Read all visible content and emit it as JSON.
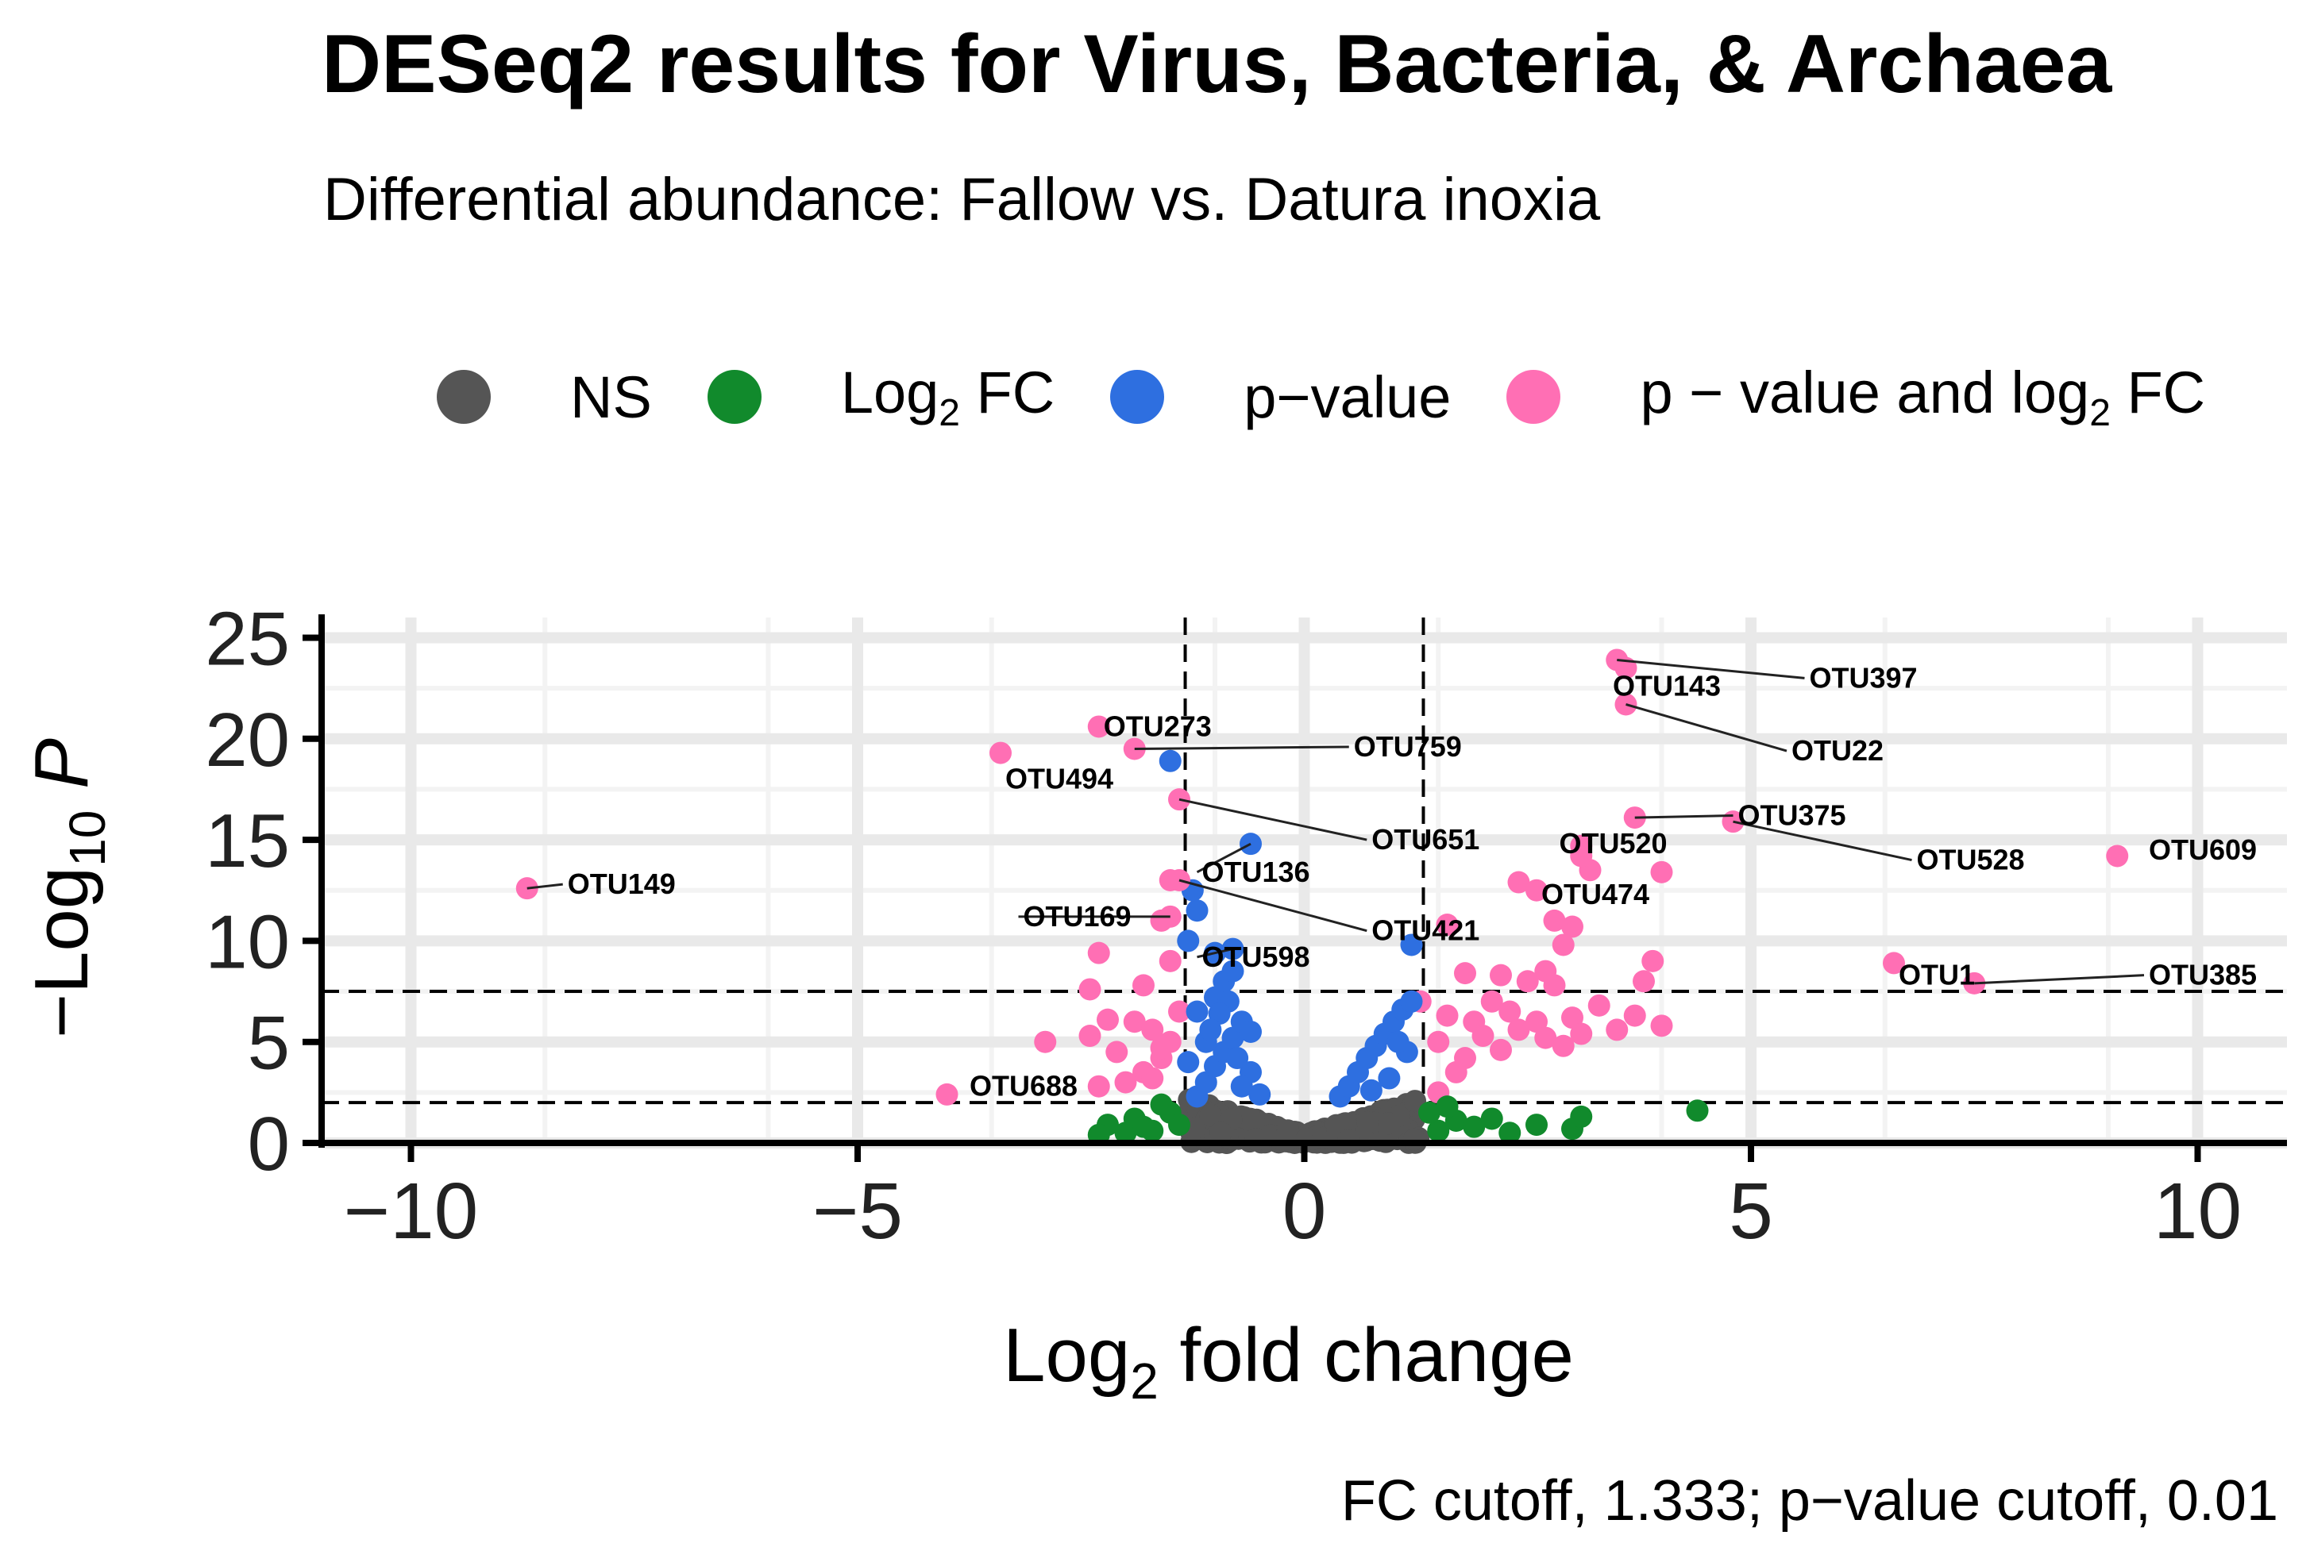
{
  "title": "DESeq2 results for Virus, Bacteria, & Archaea",
  "subtitle": "Differential abundance: Fallow vs. Datura inoxia",
  "caption": "FC cutoff, 1.333; p−value cutoff, 0.01",
  "legend": {
    "items": [
      {
        "key": "NS",
        "label": "NS",
        "color": "#555555"
      },
      {
        "key": "FC",
        "label_main": "Log",
        "label_sub": "2",
        "label_after": " FC",
        "color": "#118a2c"
      },
      {
        "key": "P",
        "label": "p−value",
        "color": "#2e6fe0"
      },
      {
        "key": "PFC",
        "label_main": "p − value and log",
        "label_sub": "2",
        "label_after": " FC",
        "color": "#ff6fb4"
      }
    ]
  },
  "colors": {
    "ns": "#555555",
    "fc": "#118a2c",
    "p": "#2e6fe0",
    "pfc": "#ff6fb4",
    "panel": "#ffffff",
    "grid_major": "#e9e9e9",
    "grid_minor": "#f3f3f3"
  },
  "chart_data": {
    "type": "scatter",
    "title": "DESeq2 results for Virus, Bacteria, & Archaea",
    "subtitle": "Differential abundance: Fallow vs. Datura inoxia",
    "xlabel_main": "Log",
    "xlabel_sub": "2",
    "xlabel_after": " fold change",
    "ylabel_main": "−Log",
    "ylabel_sub": "10",
    "ylabel_after": " P",
    "xlim": [
      -11,
      11
    ],
    "ylim": [
      0,
      26
    ],
    "x_ticks": [
      -10,
      -5,
      0,
      5,
      10
    ],
    "x_tick_labels": [
      "−10",
      "−5",
      "0",
      "5",
      "10"
    ],
    "y_ticks": [
      0,
      5,
      10,
      15,
      20,
      25
    ],
    "y_tick_labels": [
      "0",
      "5",
      "10",
      "15",
      "20",
      "25"
    ],
    "fc_cutoff": 1.333,
    "p_cutoff_neglog10": 2,
    "extra_hline": 7.5,
    "labeled_points": [
      {
        "label": "OTU149",
        "x": -8.7,
        "y": 12.6,
        "cat": "pfc",
        "lx": -8.3,
        "ly": 12.8
      },
      {
        "label": "OTU273",
        "x": -2.3,
        "y": 20.6,
        "cat": "pfc",
        "lx": -2.3,
        "ly": 20.6
      },
      {
        "label": "OTU759",
        "x": -1.9,
        "y": 19.5,
        "cat": "pfc",
        "lx": 0.5,
        "ly": 19.6
      },
      {
        "label": "OTU494",
        "x": -3.4,
        "y": 19.3,
        "cat": "pfc",
        "lx": -3.4,
        "ly": 18.0
      },
      {
        "label": "OTU651",
        "x": -1.4,
        "y": 17.0,
        "cat": "pfc",
        "lx": 0.7,
        "ly": 15.0
      },
      {
        "label": "OTU136",
        "x": -0.6,
        "y": 14.8,
        "cat": "p",
        "lx": -1.2,
        "ly": 13.4
      },
      {
        "label": "OTU421",
        "x": -1.4,
        "y": 13.0,
        "cat": "pfc",
        "lx": 0.7,
        "ly": 10.5
      },
      {
        "label": "OTU169",
        "x": -1.5,
        "y": 11.2,
        "cat": "pfc",
        "lx": -3.2,
        "ly": 11.2
      },
      {
        "label": "OTU598",
        "x": -0.8,
        "y": 9.6,
        "cat": "p",
        "lx": -1.2,
        "ly": 9.2
      },
      {
        "label": "OTU688",
        "x": -4.0,
        "y": 2.4,
        "cat": "pfc",
        "lx": -3.8,
        "ly": 2.8
      },
      {
        "label": "OTU397",
        "x": 3.5,
        "y": 23.9,
        "cat": "pfc",
        "lx": 5.6,
        "ly": 23.0
      },
      {
        "label": "OTU143",
        "x": 3.6,
        "y": 23.5,
        "cat": "pfc",
        "lx": 3.4,
        "ly": 22.6
      },
      {
        "label": "OTU22",
        "x": 3.6,
        "y": 21.7,
        "cat": "pfc",
        "lx": 5.4,
        "ly": 19.4
      },
      {
        "label": "OTU375",
        "x": 3.7,
        "y": 16.1,
        "cat": "pfc",
        "lx": 4.8,
        "ly": 16.2
      },
      {
        "label": "OTU520",
        "x": 3.1,
        "y": 14.7,
        "cat": "pfc",
        "lx": 2.8,
        "ly": 14.8
      },
      {
        "label": "OTU528",
        "x": 4.8,
        "y": 15.9,
        "cat": "pfc",
        "lx": 6.8,
        "ly": 14.0
      },
      {
        "label": "OTU609",
        "x": 9.1,
        "y": 14.2,
        "cat": "pfc",
        "lx": 9.4,
        "ly": 14.5
      },
      {
        "label": "OTU474",
        "x": 2.6,
        "y": 12.5,
        "cat": "pfc",
        "lx": 2.6,
        "ly": 12.3
      },
      {
        "label": "OTU1",
        "x": 6.6,
        "y": 8.9,
        "cat": "pfc",
        "lx": 6.6,
        "ly": 8.3
      },
      {
        "label": "OTU385",
        "x": 7.5,
        "y": 7.9,
        "cat": "pfc",
        "lx": 9.4,
        "ly": 8.3
      }
    ],
    "points": [
      {
        "x": -2.3,
        "y": 2.8,
        "cat": "pfc"
      },
      {
        "x": -2.1,
        "y": 4.5,
        "cat": "pfc"
      },
      {
        "x": -2.4,
        "y": 5.3,
        "cat": "pfc"
      },
      {
        "x": -2.2,
        "y": 6.1,
        "cat": "pfc"
      },
      {
        "x": -1.9,
        "y": 6.0,
        "cat": "pfc"
      },
      {
        "x": -1.7,
        "y": 5.6,
        "cat": "pfc"
      },
      {
        "x": -1.6,
        "y": 4.2,
        "cat": "pfc"
      },
      {
        "x": -1.8,
        "y": 3.5,
        "cat": "pfc"
      },
      {
        "x": -2.0,
        "y": 3.0,
        "cat": "pfc"
      },
      {
        "x": -1.5,
        "y": 5.0,
        "cat": "pfc"
      },
      {
        "x": -2.9,
        "y": 5.0,
        "cat": "pfc"
      },
      {
        "x": -2.4,
        "y": 7.6,
        "cat": "pfc"
      },
      {
        "x": -1.8,
        "y": 7.8,
        "cat": "pfc"
      },
      {
        "x": -1.5,
        "y": 9.0,
        "cat": "pfc"
      },
      {
        "x": -2.3,
        "y": 9.4,
        "cat": "pfc"
      },
      {
        "x": -1.5,
        "y": 13.0,
        "cat": "pfc"
      },
      {
        "x": -1.6,
        "y": 11.0,
        "cat": "pfc"
      },
      {
        "x": -1.5,
        "y": 18.9,
        "cat": "p"
      },
      {
        "x": -1.6,
        "y": 4.7,
        "cat": "pfc"
      },
      {
        "x": -1.7,
        "y": 3.2,
        "cat": "pfc"
      },
      {
        "x": -1.4,
        "y": 6.5,
        "cat": "pfc"
      },
      {
        "x": 1.5,
        "y": 5.0,
        "cat": "pfc"
      },
      {
        "x": 1.6,
        "y": 6.3,
        "cat": "pfc"
      },
      {
        "x": 1.8,
        "y": 4.2,
        "cat": "pfc"
      },
      {
        "x": 1.9,
        "y": 6.0,
        "cat": "pfc"
      },
      {
        "x": 2.0,
        "y": 5.3,
        "cat": "pfc"
      },
      {
        "x": 2.1,
        "y": 7.0,
        "cat": "pfc"
      },
      {
        "x": 2.2,
        "y": 4.6,
        "cat": "pfc"
      },
      {
        "x": 2.3,
        "y": 6.5,
        "cat": "pfc"
      },
      {
        "x": 2.4,
        "y": 5.6,
        "cat": "pfc"
      },
      {
        "x": 2.5,
        "y": 8.0,
        "cat": "pfc"
      },
      {
        "x": 2.6,
        "y": 6.0,
        "cat": "pfc"
      },
      {
        "x": 2.7,
        "y": 5.2,
        "cat": "pfc"
      },
      {
        "x": 2.8,
        "y": 7.8,
        "cat": "pfc"
      },
      {
        "x": 2.9,
        "y": 4.8,
        "cat": "pfc"
      },
      {
        "x": 3.0,
        "y": 6.2,
        "cat": "pfc"
      },
      {
        "x": 3.1,
        "y": 5.4,
        "cat": "pfc"
      },
      {
        "x": 3.3,
        "y": 6.8,
        "cat": "pfc"
      },
      {
        "x": 3.5,
        "y": 5.6,
        "cat": "pfc"
      },
      {
        "x": 3.7,
        "y": 6.3,
        "cat": "pfc"
      },
      {
        "x": 3.8,
        "y": 8.0,
        "cat": "pfc"
      },
      {
        "x": 4.0,
        "y": 5.8,
        "cat": "pfc"
      },
      {
        "x": 1.7,
        "y": 3.5,
        "cat": "pfc"
      },
      {
        "x": 1.5,
        "y": 2.5,
        "cat": "pfc"
      },
      {
        "x": 1.6,
        "y": 10.8,
        "cat": "pfc"
      },
      {
        "x": 2.4,
        "y": 12.9,
        "cat": "pfc"
      },
      {
        "x": 2.8,
        "y": 11.0,
        "cat": "pfc"
      },
      {
        "x": 3.0,
        "y": 10.7,
        "cat": "pfc"
      },
      {
        "x": 2.9,
        "y": 9.8,
        "cat": "pfc"
      },
      {
        "x": 3.2,
        "y": 13.5,
        "cat": "pfc"
      },
      {
        "x": 4.0,
        "y": 13.4,
        "cat": "pfc"
      },
      {
        "x": 3.1,
        "y": 14.2,
        "cat": "pfc"
      },
      {
        "x": 2.7,
        "y": 8.5,
        "cat": "pfc"
      },
      {
        "x": 2.2,
        "y": 8.3,
        "cat": "pfc"
      },
      {
        "x": 3.9,
        "y": 9.0,
        "cat": "pfc"
      },
      {
        "x": 1.3,
        "y": 7.0,
        "cat": "pfc"
      },
      {
        "x": 1.8,
        "y": 8.4,
        "cat": "pfc"
      },
      {
        "x": -2.2,
        "y": 0.9,
        "cat": "fc"
      },
      {
        "x": -1.9,
        "y": 1.2,
        "cat": "fc"
      },
      {
        "x": -1.7,
        "y": 0.6,
        "cat": "fc"
      },
      {
        "x": -1.5,
        "y": 1.5,
        "cat": "fc"
      },
      {
        "x": -2.0,
        "y": 0.5,
        "cat": "fc"
      },
      {
        "x": -1.6,
        "y": 1.9,
        "cat": "fc"
      },
      {
        "x": -1.8,
        "y": 0.8,
        "cat": "fc"
      },
      {
        "x": -2.3,
        "y": 0.4,
        "cat": "fc"
      },
      {
        "x": -1.4,
        "y": 0.9,
        "cat": "fc"
      },
      {
        "x": 1.5,
        "y": 0.6,
        "cat": "fc"
      },
      {
        "x": 1.7,
        "y": 1.1,
        "cat": "fc"
      },
      {
        "x": 1.9,
        "y": 0.8,
        "cat": "fc"
      },
      {
        "x": 2.1,
        "y": 1.2,
        "cat": "fc"
      },
      {
        "x": 2.3,
        "y": 0.5,
        "cat": "fc"
      },
      {
        "x": 2.6,
        "y": 0.9,
        "cat": "fc"
      },
      {
        "x": 3.0,
        "y": 0.7,
        "cat": "fc"
      },
      {
        "x": 3.1,
        "y": 1.3,
        "cat": "fc"
      },
      {
        "x": 4.4,
        "y": 1.6,
        "cat": "fc"
      },
      {
        "x": 1.4,
        "y": 1.5,
        "cat": "fc"
      },
      {
        "x": 1.6,
        "y": 1.8,
        "cat": "fc"
      },
      {
        "x": -1.2,
        "y": 2.3,
        "cat": "p"
      },
      {
        "x": -1.1,
        "y": 3.0,
        "cat": "p"
      },
      {
        "x": -1.0,
        "y": 3.8,
        "cat": "p"
      },
      {
        "x": -0.9,
        "y": 4.5,
        "cat": "p"
      },
      {
        "x": -0.8,
        "y": 5.2,
        "cat": "p"
      },
      {
        "x": -0.7,
        "y": 6.0,
        "cat": "p"
      },
      {
        "x": -1.2,
        "y": 6.5,
        "cat": "p"
      },
      {
        "x": -1.0,
        "y": 7.2,
        "cat": "p"
      },
      {
        "x": -0.9,
        "y": 8.0,
        "cat": "p"
      },
      {
        "x": -0.8,
        "y": 8.5,
        "cat": "p"
      },
      {
        "x": -1.1,
        "y": 5.0,
        "cat": "p"
      },
      {
        "x": -1.3,
        "y": 4.0,
        "cat": "p"
      },
      {
        "x": -0.6,
        "y": 3.5,
        "cat": "p"
      },
      {
        "x": -0.7,
        "y": 2.8,
        "cat": "p"
      },
      {
        "x": -0.5,
        "y": 2.4,
        "cat": "p"
      },
      {
        "x": -1.3,
        "y": 10.0,
        "cat": "p"
      },
      {
        "x": -1.2,
        "y": 11.5,
        "cat": "p"
      },
      {
        "x": -1.25,
        "y": 12.5,
        "cat": "p"
      },
      {
        "x": -1.0,
        "y": 9.4,
        "cat": "p"
      },
      {
        "x": -0.85,
        "y": 7.0,
        "cat": "p"
      },
      {
        "x": -0.95,
        "y": 6.4,
        "cat": "p"
      },
      {
        "x": -1.05,
        "y": 5.6,
        "cat": "p"
      },
      {
        "x": -0.75,
        "y": 4.2,
        "cat": "p"
      },
      {
        "x": -0.6,
        "y": 5.5,
        "cat": "p"
      },
      {
        "x": 0.4,
        "y": 2.3,
        "cat": "p"
      },
      {
        "x": 0.5,
        "y": 2.8,
        "cat": "p"
      },
      {
        "x": 0.6,
        "y": 3.5,
        "cat": "p"
      },
      {
        "x": 0.7,
        "y": 4.2,
        "cat": "p"
      },
      {
        "x": 0.8,
        "y": 4.8,
        "cat": "p"
      },
      {
        "x": 0.9,
        "y": 5.4,
        "cat": "p"
      },
      {
        "x": 1.0,
        "y": 6.0,
        "cat": "p"
      },
      {
        "x": 1.1,
        "y": 6.6,
        "cat": "p"
      },
      {
        "x": 1.2,
        "y": 7.0,
        "cat": "p"
      },
      {
        "x": 0.95,
        "y": 3.2,
        "cat": "p"
      },
      {
        "x": 1.15,
        "y": 4.5,
        "cat": "p"
      },
      {
        "x": 0.75,
        "y": 2.6,
        "cat": "p"
      },
      {
        "x": 1.2,
        "y": 9.8,
        "cat": "p"
      },
      {
        "x": 1.05,
        "y": 5.0,
        "cat": "p"
      }
    ]
  }
}
